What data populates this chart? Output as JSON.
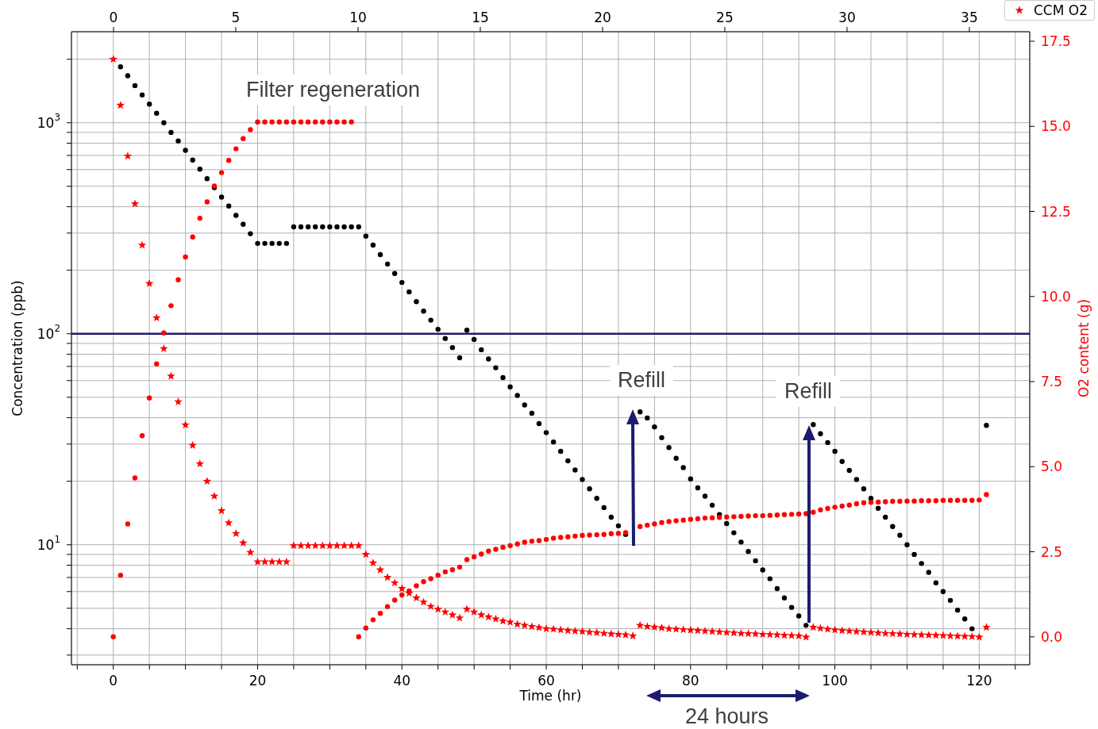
{
  "chart_data": {
    "type": "scatter",
    "xlabel": "Time (hr)",
    "ylabel": "Concentration (ppb)",
    "y2label": "O2 content (g)",
    "x": [
      0,
      1,
      2,
      3,
      4,
      5,
      6,
      7,
      8,
      9,
      10,
      11,
      12,
      13,
      14,
      15,
      16,
      17,
      18,
      19,
      20,
      21,
      22,
      23,
      24,
      25,
      26,
      27,
      28,
      29,
      30,
      31,
      32,
      33,
      34,
      35,
      36,
      37,
      38,
      39,
      40,
      41,
      42,
      43,
      44,
      45,
      46,
      47,
      48,
      49,
      50,
      51,
      52,
      53,
      54,
      55,
      56,
      57,
      58,
      59,
      60,
      61,
      62,
      63,
      64,
      65,
      66,
      67,
      68,
      69,
      70,
      71,
      72,
      73,
      74,
      75,
      76,
      77,
      78,
      79,
      80,
      81,
      82,
      83,
      84,
      85,
      86,
      87,
      88,
      89,
      90,
      91,
      92,
      93,
      94,
      95,
      96,
      97,
      98,
      99,
      100,
      101,
      102,
      103,
      104,
      105,
      106,
      107,
      108,
      109,
      110,
      111,
      112,
      113,
      114,
      115,
      116,
      117,
      118,
      119,
      120,
      121
    ],
    "series": [
      {
        "color": "#000000",
        "marker": "circle",
        "values": [
          null,
          1840,
          1670,
          1500,
          1355,
          1225,
          1110,
          1000,
          900,
          820,
          740,
          666,
          603,
          543,
          493,
          444,
          403,
          364,
          330,
          298,
          268,
          268,
          268,
          268,
          268,
          321,
          321,
          321,
          321,
          321,
          321,
          321,
          321,
          321,
          321,
          290,
          263,
          237,
          214,
          193,
          175,
          158,
          142,
          128,
          116,
          105,
          95,
          86,
          77,
          104,
          94,
          84,
          76,
          69,
          62,
          56,
          51,
          46,
          42,
          37.5,
          34,
          30.7,
          27.7,
          25,
          22.6,
          20.4,
          18.4,
          16.6,
          15,
          13.5,
          12.3,
          11.2,
          null,
          42.6,
          39.9,
          36.2,
          32.2,
          28.9,
          25.7,
          23.2,
          20.5,
          18.6,
          17,
          15.4,
          13.9,
          12.6,
          11.4,
          10.3,
          9.3,
          8.4,
          7.6,
          6.9,
          6.2,
          5.6,
          5.05,
          4.6,
          4.15,
          37.1,
          33.6,
          30.5,
          27.7,
          24.8,
          22.5,
          20.4,
          18.4,
          16.6,
          14.9,
          13.5,
          12.2,
          11.1,
          10,
          9,
          8.15,
          7.4,
          6.6,
          6,
          5.45,
          4.9,
          4.45,
          4,
          null,
          36.8
        ]
      },
      {
        "color": "#ff0000",
        "marker": "circle",
        "axis": "y2",
        "values": [
          0,
          1.81,
          3.32,
          4.67,
          5.91,
          7.02,
          8.02,
          8.93,
          9.73,
          10.49,
          11.16,
          11.75,
          12.3,
          12.78,
          13.25,
          13.64,
          14,
          14.34,
          14.64,
          14.9,
          15.13,
          15.13,
          15.13,
          15.13,
          15.13,
          15.13,
          15.13,
          15.13,
          15.13,
          15.13,
          15.13,
          15.13,
          15.13,
          15.13,
          0,
          0.26,
          0.5,
          0.69,
          0.89,
          1.08,
          1.23,
          1.35,
          1.5,
          1.62,
          1.71,
          1.81,
          1.91,
          1.97,
          2.05,
          2.27,
          2.35,
          2.43,
          2.52,
          2.57,
          2.63,
          2.68,
          2.73,
          2.78,
          2.81,
          2.83,
          2.86,
          2.9,
          2.92,
          2.94,
          2.96,
          2.98,
          2.99,
          3.0,
          3.01,
          3.03,
          3.04,
          3.06,
          null,
          3.24,
          3.28,
          3.32,
          3.36,
          3.39,
          3.41,
          3.43,
          3.45,
          3.47,
          3.49,
          3.5,
          3.51,
          3.52,
          3.53,
          3.54,
          3.55,
          3.56,
          3.56,
          3.57,
          3.58,
          3.59,
          3.6,
          3.61,
          3.62,
          3.66,
          3.73,
          3.77,
          3.81,
          3.84,
          3.87,
          3.91,
          3.94,
          3.95,
          3.96,
          3.97,
          3.98,
          3.98,
          3.99,
          3.99,
          4.0,
          4.0,
          4.0,
          4.01,
          4.01,
          4.01,
          4.01,
          4.01,
          4.02,
          4.18
        ]
      },
      {
        "name": "CCM O2",
        "color": "#ff0000",
        "marker": "star",
        "values": [
          2000,
          1210,
          695,
          413,
          263,
          173,
          119,
          85,
          63,
          47.6,
          37,
          29.6,
          24.2,
          20,
          17,
          14.5,
          12.7,
          11.3,
          10.2,
          9.2,
          8.3,
          8.3,
          8.3,
          8.3,
          8.3,
          9.9,
          9.9,
          9.9,
          9.9,
          9.9,
          9.9,
          9.9,
          9.9,
          9.9,
          9.9,
          9,
          8.2,
          7.6,
          7,
          6.6,
          6.2,
          5.9,
          5.6,
          5.35,
          5.1,
          4.95,
          4.8,
          4.65,
          4.5,
          4.95,
          4.8,
          4.65,
          4.55,
          4.45,
          4.35,
          4.3,
          4.2,
          4.15,
          4.1,
          4.05,
          4.0,
          3.98,
          3.95,
          3.92,
          3.9,
          3.88,
          3.85,
          3.83,
          3.8,
          3.78,
          3.76,
          3.74,
          3.7,
          4.15,
          4.1,
          4.07,
          4.04,
          4.0,
          3.98,
          3.96,
          3.94,
          3.92,
          3.9,
          3.88,
          3.86,
          3.84,
          3.82,
          3.8,
          3.79,
          3.78,
          3.76,
          3.75,
          3.74,
          3.72,
          3.71,
          3.7,
          3.65,
          4.06,
          4.02,
          3.98,
          3.95,
          3.92,
          3.9,
          3.88,
          3.86,
          3.84,
          3.82,
          3.8,
          3.79,
          3.78,
          3.76,
          3.75,
          3.74,
          3.73,
          3.72,
          3.71,
          3.7,
          3.69,
          3.68,
          3.67,
          3.65,
          4.06
        ]
      }
    ],
    "xlim": [
      -5.8,
      127
    ],
    "xticks": [
      {
        "value": -5,
        "label": null
      },
      0,
      {
        "value": 5,
        "label": null
      },
      {
        "value": 10,
        "label": null
      },
      {
        "value": 15,
        "label": null
      },
      20,
      {
        "value": 25,
        "label": null
      },
      {
        "value": 30,
        "label": null
      },
      {
        "value": 35,
        "label": null
      },
      40,
      {
        "value": 45,
        "label": null
      },
      {
        "value": 50,
        "label": null
      },
      {
        "value": 55,
        "label": null
      },
      60,
      {
        "value": 65,
        "label": null
      },
      {
        "value": 70,
        "label": null
      },
      {
        "value": 75,
        "label": null
      },
      80,
      {
        "value": 85,
        "label": null
      },
      {
        "value": 90,
        "label": null
      },
      {
        "value": 95,
        "label": null
      },
      100,
      {
        "value": 105,
        "label": null
      },
      {
        "value": 110,
        "label": null
      },
      {
        "value": 115,
        "label": null
      },
      120,
      {
        "value": 125,
        "label": null
      }
    ],
    "x2lim": [
      -1.72,
      37.47
    ],
    "x2ticks": [
      0,
      5,
      10,
      15,
      20,
      25,
      30,
      35
    ],
    "ylim": [
      2.7,
      2700
    ],
    "yticks": [
      {
        "value": 3,
        "label": null
      },
      {
        "value": 4,
        "label": null
      },
      {
        "value": 5,
        "label": null
      },
      {
        "value": 6,
        "label": null
      },
      {
        "value": 7,
        "label": null
      },
      {
        "value": 8,
        "label": null
      },
      {
        "value": 9,
        "label": null
      },
      {
        "value": 10,
        "label": "10$^{1}$"
      },
      {
        "value": 20,
        "label": null
      },
      {
        "value": 30,
        "label": null
      },
      {
        "value": 40,
        "label": null
      },
      {
        "value": 50,
        "label": null
      },
      {
        "value": 60,
        "label": null
      },
      {
        "value": 70,
        "label": null
      },
      {
        "value": 80,
        "label": null
      },
      {
        "value": 90,
        "label": null
      },
      {
        "value": 100,
        "label": "10$^{2}$"
      },
      {
        "value": 200,
        "label": null
      },
      {
        "value": 300,
        "label": null
      },
      {
        "value": 400,
        "label": null
      },
      {
        "value": 500,
        "label": null
      },
      {
        "value": 600,
        "label": null
      },
      {
        "value": 700,
        "label": null
      },
      {
        "value": 800,
        "label": null
      },
      {
        "value": 900,
        "label": null
      },
      {
        "value": 1000,
        "label": "10$^{3}$"
      },
      {
        "value": 2000,
        "label": null
      }
    ],
    "log": true,
    "y2lim": [
      -0.82,
      17.78
    ],
    "y2ticks": [
      {
        "value": 0,
        "label": "0.0"
      },
      {
        "value": 2.5,
        "label": "2.5"
      },
      {
        "value": 5,
        "label": "5.0"
      },
      {
        "value": 7.5,
        "label": "7.5"
      },
      {
        "value": 10,
        "label": "10.0"
      },
      {
        "value": 12.5,
        "label": "12.5"
      },
      {
        "value": 15,
        "label": "15.0"
      },
      {
        "value": 17.5,
        "label": "17.5"
      }
    ],
    "ref_lines": [
      {
        "axis": "y",
        "value": 100,
        "color": "#1c1c6e"
      }
    ],
    "grid": true,
    "legend": "top right",
    "annotations": [
      "Filter regeneration",
      "Refill",
      "Refill",
      "24 hours"
    ]
  }
}
